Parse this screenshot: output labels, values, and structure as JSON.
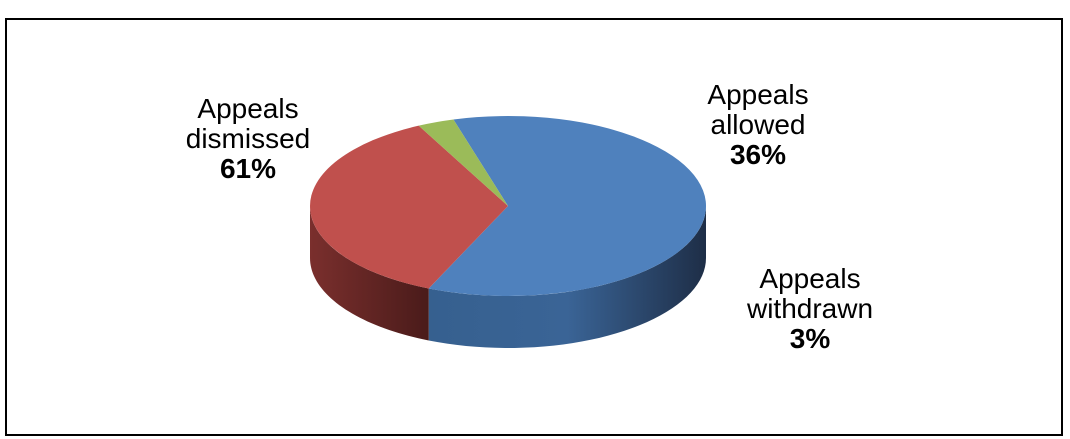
{
  "chart_data": {
    "type": "pie",
    "title": "",
    "series": [
      {
        "name": "",
        "slices": [
          {
            "label": "Appeals dismissed",
            "name_lines": [
              "Appeals",
              "dismissed"
            ],
            "percent_label": "61%",
            "value": 61,
            "color": "#4F81BD"
          },
          {
            "label": "Appeals allowed",
            "name_lines": [
              "Appeals",
              "allowed"
            ],
            "percent_label": "36%",
            "value": 36,
            "color": "#C0504D"
          },
          {
            "label": "Appeals withdrawn",
            "name_lines": [
              "Appeals",
              "withdrawn"
            ],
            "percent_label": "3%",
            "value": 3,
            "color": "#9BBB59"
          }
        ]
      }
    ],
    "style": "3d-pie",
    "legend": "none"
  }
}
